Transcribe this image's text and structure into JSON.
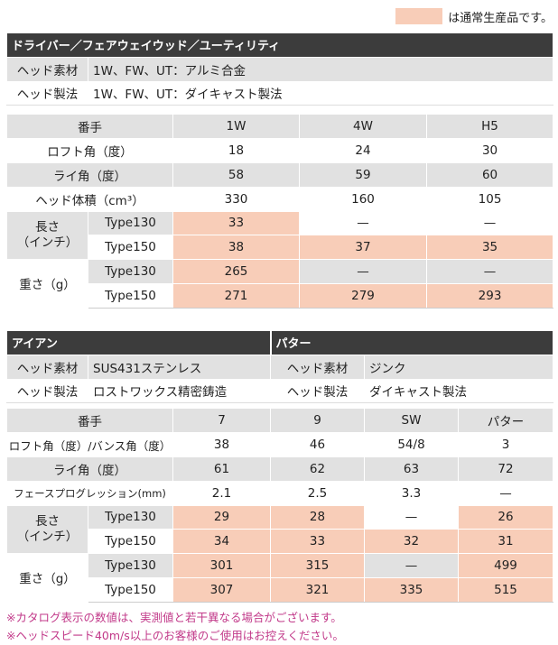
{
  "legend": {
    "text": "は通常生産品です。",
    "color": "#f8cdb8"
  },
  "wood": {
    "title": "ドライバー／フェアウェイウッド／ユーティリティ",
    "head_material_label": "ヘッド素材",
    "head_material_value": "1W、FW、UT：アルミ合金",
    "head_method_label": "ヘッド製法",
    "head_method_value": "1W、FW、UT：ダイキャスト製法",
    "columns": [
      "番手",
      "1W",
      "4W",
      "H5"
    ],
    "rows": [
      {
        "label": "ロフト角（度）",
        "values": [
          "18",
          "24",
          "30"
        ]
      },
      {
        "label": "ライ角（度）",
        "values": [
          "58",
          "59",
          "60"
        ]
      },
      {
        "label": "ヘッド体積（cm³）",
        "values": [
          "330",
          "160",
          "105"
        ]
      }
    ],
    "length_label": "長さ（インチ）",
    "length_label_1": "長さ",
    "length_label_2": "（インチ）",
    "weight_label": "重さ（g）",
    "type130": "Type130",
    "type150": "Type150",
    "length_130": [
      "33",
      "—",
      "—"
    ],
    "length_150": [
      "38",
      "37",
      "35"
    ],
    "weight_130": [
      "265",
      "—",
      "—"
    ],
    "weight_150": [
      "271",
      "279",
      "293"
    ]
  },
  "iron": {
    "title": "アイアン",
    "putter_title": "パター",
    "head_material_label": "ヘッド素材",
    "head_material_value": "SUS431ステンレス",
    "head_method_label": "ヘッド製法",
    "head_method_value": "ロストワックス精密鋳造",
    "putter_material_label": "ヘッド素材",
    "putter_material_value": "ジンク",
    "putter_method_label": "ヘッド製法",
    "putter_method_value": "ダイキャスト製法",
    "columns": [
      "番手",
      "7",
      "9",
      "SW",
      "パター"
    ],
    "rows": [
      {
        "label": "ロフト角（度）/バンス角（度）",
        "values": [
          "38",
          "46",
          "54/8",
          "3"
        ]
      },
      {
        "label": "ライ角（度）",
        "values": [
          "61",
          "62",
          "63",
          "72"
        ]
      },
      {
        "label": "フェースプログレッション(mm)",
        "values": [
          "2.1",
          "2.5",
          "3.3",
          "—"
        ]
      }
    ],
    "length_label_1": "長さ",
    "length_label_2": "（インチ）",
    "weight_label": "重さ（g）",
    "type130": "Type130",
    "type150": "Type150",
    "length_130": [
      "29",
      "28",
      "—",
      "26"
    ],
    "length_150": [
      "34",
      "33",
      "32",
      "31"
    ],
    "weight_130": [
      "301",
      "315",
      "—",
      "499"
    ],
    "weight_150": [
      "307",
      "321",
      "335",
      "515"
    ]
  },
  "notes": [
    "※カタログ表示の数値は、実測値と若干異なる場合がございます。",
    "※ヘッドスピード40m/s以上のお客様のご使用はお控えください。"
  ]
}
